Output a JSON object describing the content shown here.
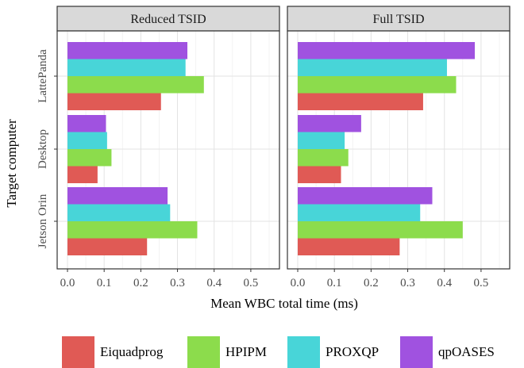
{
  "chart_data": {
    "type": "bar",
    "orientation": "horizontal",
    "xlabel": "Mean WBC total time (ms)",
    "ylabel": "Target computer",
    "xlim": [
      0,
      0.55
    ],
    "x_ticks": [
      "0.0",
      "0.1",
      "0.2",
      "0.3",
      "0.4",
      "0.5"
    ],
    "x_tick_values": [
      0,
      0.1,
      0.2,
      0.3,
      0.4,
      0.5
    ],
    "categories": [
      "LattePanda",
      "Desktop",
      "Jetson Orin"
    ],
    "legend_position": "bottom",
    "grid": true,
    "series": [
      {
        "name": "Eiquadprog",
        "color": "#e05a55"
      },
      {
        "name": "HPIPM",
        "color": "#8cdc4c"
      },
      {
        "name": "PROXQP",
        "color": "#48d5d8"
      },
      {
        "name": "qpOASES",
        "color": "#a052e0"
      }
    ],
    "panels": [
      {
        "title": "Reduced TSID",
        "values": {
          "LattePanda": [
            0.255,
            0.372,
            0.322,
            0.327
          ],
          "Desktop": [
            0.082,
            0.12,
            0.108,
            0.105
          ],
          "Jetson Orin": [
            0.217,
            0.354,
            0.28,
            0.273
          ]
        }
      },
      {
        "title": "Full TSID",
        "values": {
          "LattePanda": [
            0.342,
            0.432,
            0.407,
            0.483
          ],
          "Desktop": [
            0.118,
            0.138,
            0.128,
            0.173
          ],
          "Jetson Orin": [
            0.278,
            0.45,
            0.334,
            0.367
          ]
        }
      }
    ]
  }
}
